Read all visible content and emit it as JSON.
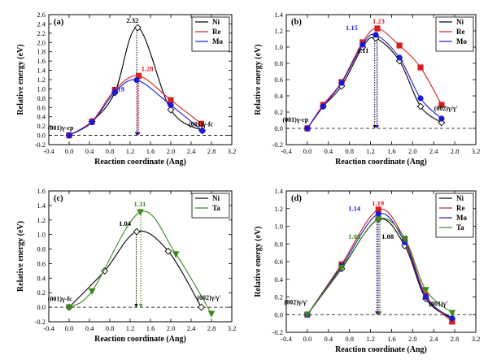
{
  "chart_data": [
    {
      "type": "line",
      "panel_label": "(a)",
      "xlabel": "Reaction coordinate (Ang)",
      "ylabel": "Relative energy (eV)",
      "xlim": [
        -0.4,
        3.2
      ],
      "ylim": [
        -0.2,
        2.6
      ],
      "xticks": [
        "-0.4",
        "0.0",
        "0.4",
        "0.8",
        "1.2",
        "1.6",
        "2.0",
        "2.4",
        "2.8",
        "3.2"
      ],
      "yticks": [
        "-0.2",
        "0.0",
        "0.2",
        "0.4",
        "0.6",
        "0.8",
        "1.0",
        "1.2",
        "1.4",
        "1.6",
        "1.8",
        "2.0",
        "2.2",
        "2.4",
        "2.6"
      ],
      "series": [
        {
          "name": "Ni",
          "color": "#000000",
          "marker": "diamond",
          "x": [
            0.0,
            0.45,
            0.9,
            1.35,
            2.0,
            2.62
          ],
          "y": [
            0.0,
            0.3,
            0.92,
            2.32,
            0.55,
            0.1
          ]
        },
        {
          "name": "Re",
          "color": "#d62020",
          "marker": "square",
          "x": [
            0.0,
            0.45,
            0.9,
            1.37,
            2.0,
            2.6
          ],
          "y": [
            0.0,
            0.3,
            0.98,
            1.28,
            0.76,
            0.25
          ]
        },
        {
          "name": "Mo",
          "color": "#1a1ad6",
          "marker": "circle",
          "x": [
            0.0,
            0.45,
            0.9,
            1.33,
            2.0,
            2.62
          ],
          "y": [
            0.0,
            0.28,
            0.93,
            1.19,
            0.65,
            0.1
          ]
        }
      ],
      "data_labels": [
        {
          "text": "2.32",
          "color": "#000000"
        },
        {
          "text": "1.28",
          "color": "#d62020"
        },
        {
          "text": "1.19",
          "color": "#1a1ad6"
        }
      ],
      "annotations": [
        "(001)γ-cp",
        "(001)γ-fc"
      ]
    },
    {
      "type": "line",
      "panel_label": "(b)",
      "xlabel": "Reaction coordinate (Ang)",
      "ylabel": "Relative energy (eV)",
      "xlim": [
        -0.4,
        3.2
      ],
      "ylim": [
        -0.2,
        1.4
      ],
      "xticks": [
        "-0.4",
        "0.0",
        "0.4",
        "0.8",
        "1.2",
        "1.6",
        "2.0",
        "2.4",
        "2.8",
        "3.2"
      ],
      "yticks": [
        "-0.2",
        "0.0",
        "0.2",
        "0.4",
        "0.6",
        "0.8",
        "1.0",
        "1.2",
        "1.4"
      ],
      "series": [
        {
          "name": "Ni",
          "color": "#000000",
          "marker": "diamond",
          "x": [
            0.0,
            0.3,
            0.65,
            1.05,
            1.3,
            1.75,
            2.15,
            2.55
          ],
          "y": [
            0.0,
            0.27,
            0.52,
            1.0,
            1.11,
            0.83,
            0.27,
            0.07
          ]
        },
        {
          "name": "Re",
          "color": "#d62020",
          "marker": "square",
          "x": [
            0.0,
            0.3,
            0.65,
            1.05,
            1.33,
            1.75,
            2.15,
            2.55
          ],
          "y": [
            0.0,
            0.29,
            0.57,
            1.06,
            1.23,
            1.02,
            0.75,
            0.29
          ]
        },
        {
          "name": "Mo",
          "color": "#1a1ad6",
          "marker": "circle",
          "x": [
            0.0,
            0.3,
            0.65,
            1.05,
            1.3,
            1.75,
            2.15,
            2.55
          ],
          "y": [
            0.0,
            0.27,
            0.56,
            1.03,
            1.15,
            0.87,
            0.37,
            0.12
          ]
        }
      ],
      "data_labels": [
        {
          "text": "1.23",
          "color": "#d62020"
        },
        {
          "text": "1.15",
          "color": "#1a1ad6"
        },
        {
          "text": "1.11",
          "color": "#000000"
        }
      ],
      "annotations": [
        "(001)γ-cp",
        "(002)γ/γ'"
      ]
    },
    {
      "type": "line",
      "panel_label": "(c)",
      "xlabel": "Reaction coordinate (Ang)",
      "ylabel": "Relative energy (eV)",
      "xlim": [
        -0.4,
        3.2
      ],
      "ylim": [
        -0.2,
        1.6
      ],
      "xticks": [
        "-0.4",
        "0.0",
        "0.4",
        "0.8",
        "1.2",
        "1.6",
        "2.0",
        "2.4",
        "2.8",
        "3.2"
      ],
      "yticks": [
        "-0.2",
        "0.0",
        "0.2",
        "0.4",
        "0.6",
        "0.8",
        "1.0",
        "1.2",
        "1.4",
        "1.6"
      ],
      "series": [
        {
          "name": "Ni",
          "color": "#000000",
          "marker": "diamond",
          "x": [
            0.0,
            0.7,
            1.33,
            1.95,
            2.6
          ],
          "y": [
            0.0,
            0.5,
            1.04,
            0.77,
            0.0
          ]
        },
        {
          "name": "Ta",
          "color": "#3a8a1a",
          "marker": "triangle-down",
          "x": [
            0.0,
            0.45,
            1.4,
            2.1,
            2.8
          ],
          "y": [
            0.0,
            0.22,
            1.31,
            0.73,
            -0.09
          ]
        }
      ],
      "data_labels": [
        {
          "text": "1.31",
          "color": "#3a8a1a"
        },
        {
          "text": "1.04",
          "color": "#000000"
        }
      ],
      "annotations": [
        "(001)γ-fc",
        "(002)γ/γ'"
      ]
    },
    {
      "type": "line",
      "panel_label": "(d)",
      "xlabel": "Reaction coordinate (Ang)",
      "ylabel": "Relative energy (eV)",
      "xlim": [
        -0.4,
        3.2
      ],
      "ylim": [
        -0.2,
        1.4
      ],
      "xticks": [
        "-0.4",
        "0.0",
        "0.4",
        "0.8",
        "1.2",
        "1.6",
        "2.0",
        "2.4",
        "2.8",
        "3.2"
      ],
      "yticks": [
        "-0.2",
        "0.0",
        "0.2",
        "0.4",
        "0.6",
        "0.8",
        "1.0",
        "1.2",
        "1.4"
      ],
      "series": [
        {
          "name": "Ni",
          "color": "#000000",
          "marker": "diamond",
          "x": [
            0.0,
            0.65,
            1.35,
            1.85,
            2.25,
            2.75
          ],
          "y": [
            0.0,
            0.52,
            1.08,
            0.78,
            0.18,
            -0.05
          ]
        },
        {
          "name": "Re",
          "color": "#d62020",
          "marker": "square",
          "x": [
            0.0,
            0.65,
            1.35,
            1.85,
            2.25,
            2.75
          ],
          "y": [
            0.0,
            0.57,
            1.19,
            0.85,
            0.22,
            -0.08
          ]
        },
        {
          "name": "Mo",
          "color": "#1a1ad6",
          "marker": "circle",
          "x": [
            0.0,
            0.65,
            1.35,
            1.85,
            2.25,
            2.75
          ],
          "y": [
            0.0,
            0.55,
            1.14,
            0.82,
            0.2,
            -0.04
          ]
        },
        {
          "name": "Ta",
          "color": "#3a8a1a",
          "marker": "triangle-down",
          "x": [
            0.0,
            0.65,
            1.35,
            1.85,
            2.25,
            2.75
          ],
          "y": [
            0.0,
            0.53,
            1.08,
            0.86,
            0.28,
            0.02
          ]
        }
      ],
      "data_labels": [
        {
          "text": "1.19",
          "color": "#d62020"
        },
        {
          "text": "1.14",
          "color": "#1a1ad6"
        },
        {
          "text": "1.08",
          "color": "#3a8a1a"
        },
        {
          "text": "1.08",
          "color": "#000000"
        }
      ],
      "annotations": [
        "(002)γ/γ'",
        "(001)γ'"
      ]
    }
  ]
}
